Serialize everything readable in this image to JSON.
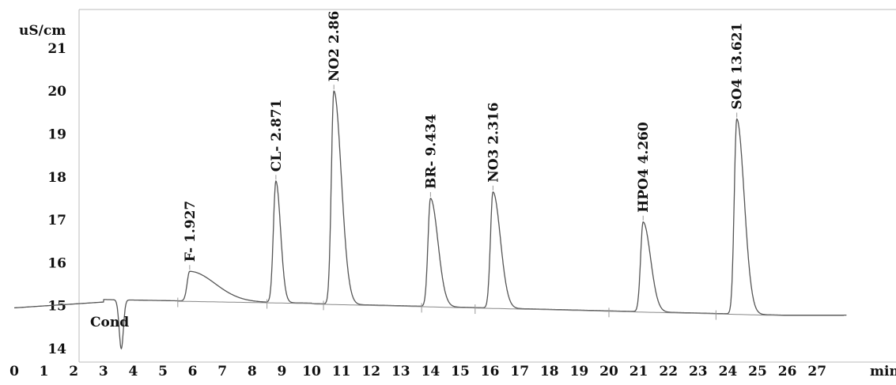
{
  "chart_data": {
    "type": "line",
    "ylabel": "uS/cm",
    "xlabel": "min",
    "series_label": "Cond",
    "xlim": [
      0,
      28
    ],
    "ylim": [
      13.7,
      21.8
    ],
    "x_ticks": [
      0,
      1,
      2,
      3,
      4,
      5,
      6,
      7,
      8,
      9,
      10,
      11,
      12,
      13,
      14,
      15,
      16,
      17,
      18,
      19,
      20,
      21,
      22,
      23,
      24,
      25,
      26,
      27
    ],
    "y_ticks": [
      14,
      15,
      16,
      17,
      18,
      19,
      20,
      21
    ],
    "grid": false,
    "dip": {
      "x": 3.6,
      "y": 14.0
    },
    "peaks": [
      {
        "label": "F- 1.927",
        "x": 5.9,
        "y": 15.8
      },
      {
        "label": "CL- 2.871",
        "x": 8.8,
        "y": 17.9
      },
      {
        "label": "NO2 2.86",
        "x": 10.75,
        "y": 20.0
      },
      {
        "label": "BR- 9.434",
        "x": 14.0,
        "y": 17.5
      },
      {
        "label": "NO3 2.316",
        "x": 16.1,
        "y": 17.65
      },
      {
        "label": "HPO4 4.260",
        "x": 21.15,
        "y": 16.95
      },
      {
        "label": "SO4 13.621",
        "x": 24.3,
        "y": 19.35
      }
    ]
  }
}
